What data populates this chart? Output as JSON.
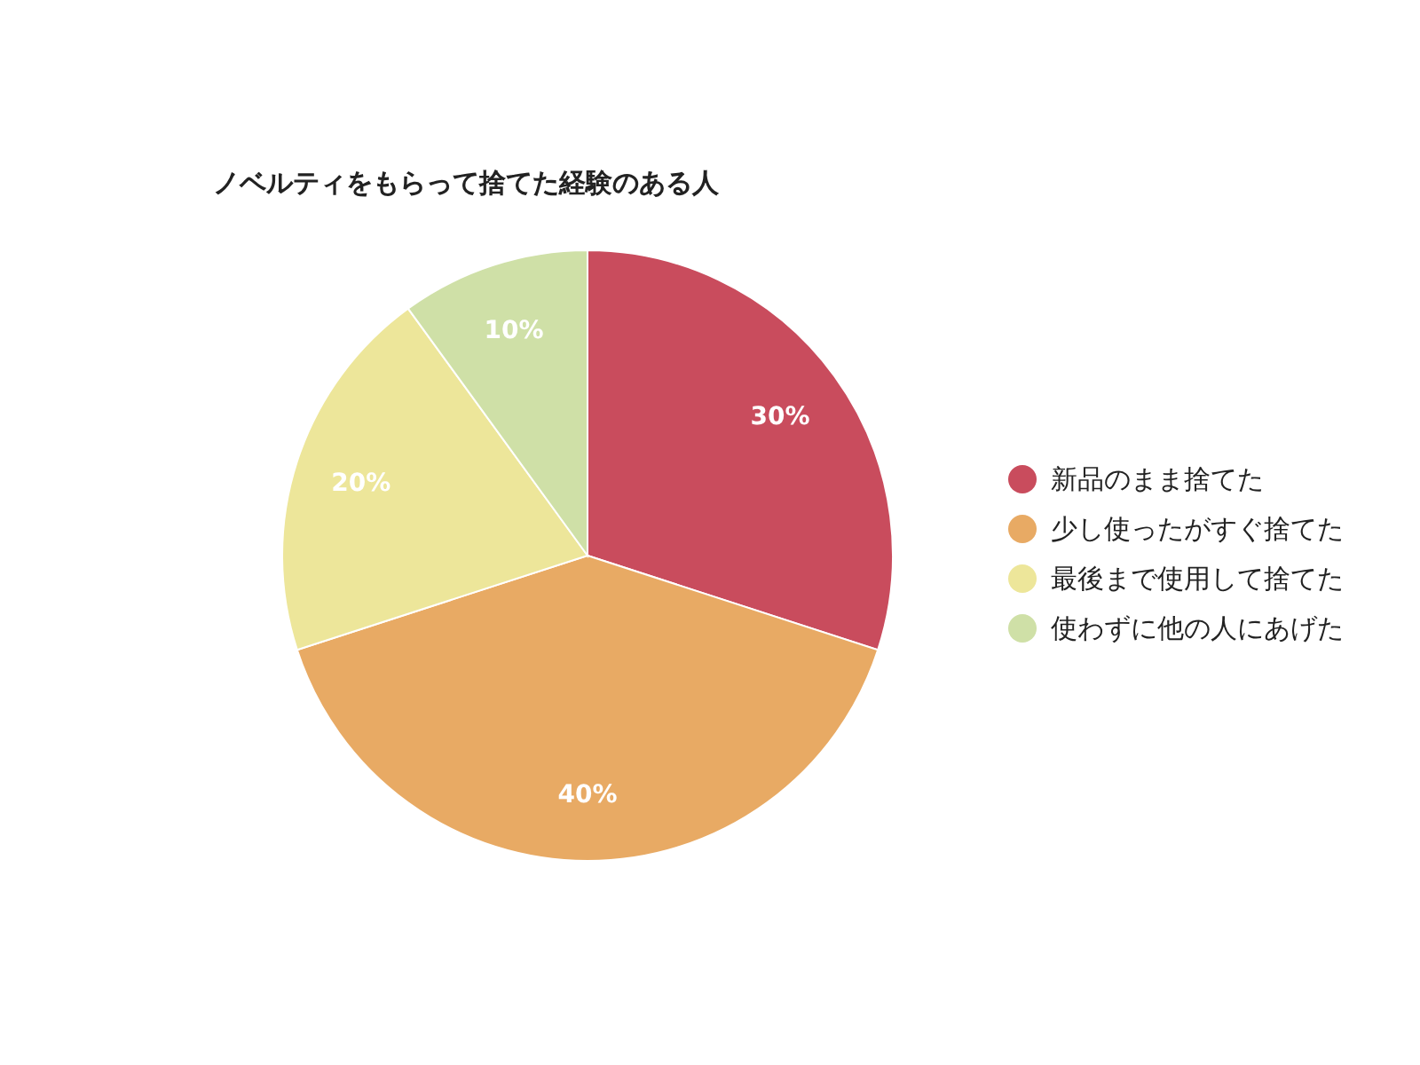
{
  "chart_data": {
    "type": "pie",
    "title": "ノベルティをもらって捨てた経験のある人",
    "categories": [
      "新品のまま捨てた",
      "少し使ったがすぐ捨てた",
      "最後まで使用して捨てた",
      "使わずに他の人にあげた"
    ],
    "values": [
      30,
      40,
      20,
      10
    ],
    "colors": [
      "#c94c5d",
      "#e8aa64",
      "#ede69a",
      "#cfe0a7"
    ],
    "value_labels": [
      "30%",
      "40%",
      "20%",
      "10%"
    ],
    "legend": "right"
  }
}
